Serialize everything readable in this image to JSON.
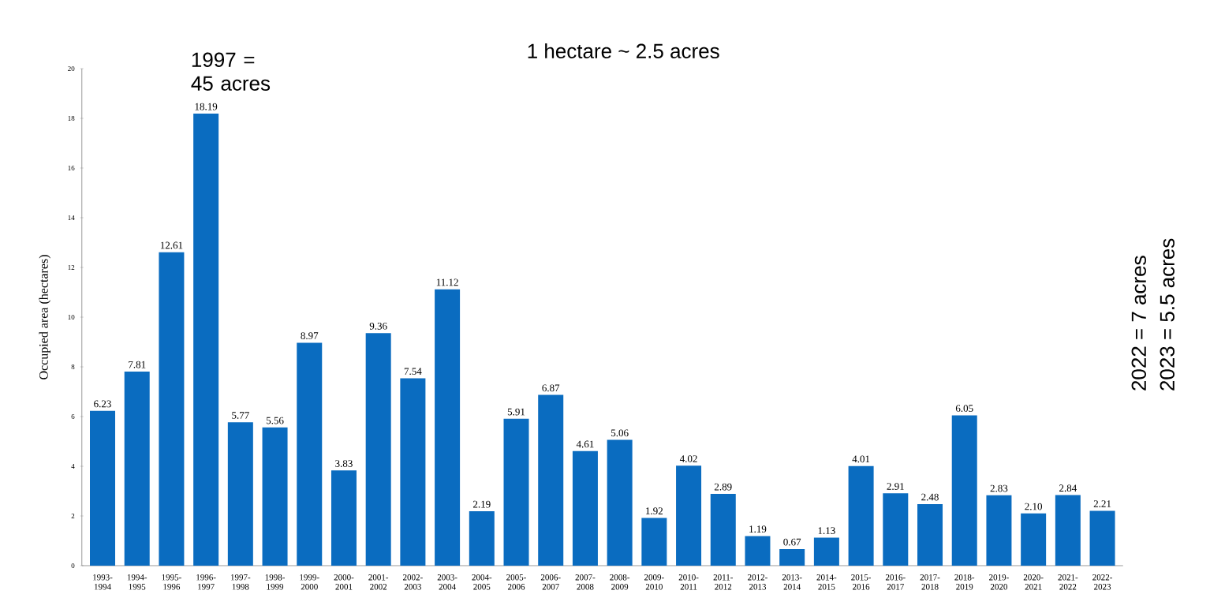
{
  "chart_data": {
    "type": "bar",
    "ylabel": "Occupied area  (hectares)",
    "categories": [
      "1993-1994",
      "1994-1995",
      "1995-1996",
      "1996-1997",
      "1997-1998",
      "1998-1999",
      "1999-2000",
      "2000-2001",
      "2001-2002",
      "2002-2003",
      "2003-2004",
      "2004-2005",
      "2005-2006",
      "2006-2007",
      "2007-2008",
      "2008-2009",
      "2009-2010",
      "2010-2011",
      "2011-2012",
      "2012-2013",
      "2013-2014",
      "2014-2015",
      "2015-2016",
      "2016-2017",
      "2017-2018",
      "2018-2019",
      "2019-2020",
      "2020-2021",
      "2021-2022",
      "2022-2023"
    ],
    "values": [
      6.23,
      7.81,
      12.61,
      18.19,
      5.77,
      5.56,
      8.97,
      3.83,
      9.36,
      7.54,
      11.12,
      2.19,
      5.91,
      6.87,
      4.61,
      5.06,
      1.92,
      4.02,
      2.89,
      1.19,
      0.67,
      1.13,
      4.01,
      2.91,
      2.48,
      6.05,
      2.83,
      2.1,
      2.84,
      2.21
    ],
    "value_labels": [
      "6.23",
      "7.81",
      "12.61",
      "18.19",
      "5.77",
      "5.56",
      "8.97",
      "3.83",
      "9.36",
      "7.54",
      "11.12",
      "2.19",
      "5.91",
      "6.87",
      "4.61",
      "5.06",
      "1.92",
      "4.02",
      "2.89",
      "1.19",
      "0.67",
      "1.13",
      "4.01",
      "2.91",
      "2.48",
      "6.05",
      "2.83",
      "2.10",
      "2.84",
      "2.21"
    ],
    "color": "#0a6cc0",
    "ylim": [
      0,
      20
    ],
    "yticks": [
      0,
      2,
      4,
      6,
      8,
      10,
      12,
      14,
      16,
      18,
      20
    ],
    "annotations": [
      "1997 = 45 acres",
      "1 hectare ~ 2.5 acres",
      "2022 = 7 acres",
      "2023 = 5.5 acres"
    ]
  }
}
